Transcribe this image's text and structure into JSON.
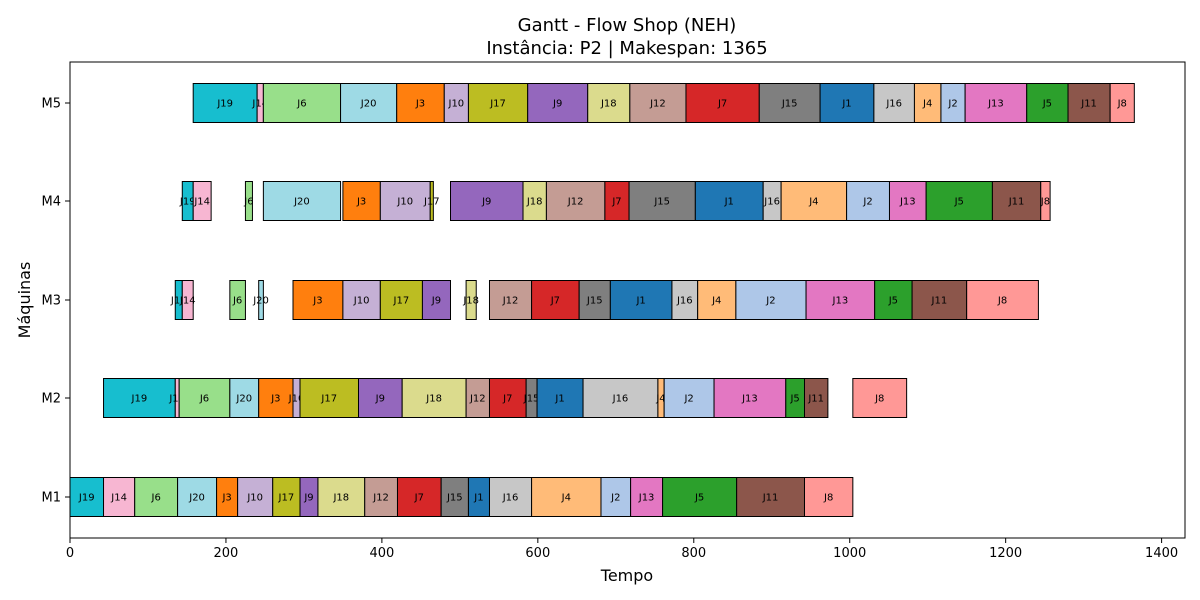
{
  "chart_data": {
    "type": "gantt",
    "title": "Gantt - Flow Shop (NEH)",
    "subtitle": "Instância: P2 | Makespan: 1365",
    "xlabel": "Tempo",
    "ylabel": "Máquinas",
    "xlim": [
      0,
      1430
    ],
    "x_ticks": [
      0,
      200,
      400,
      600,
      800,
      1000,
      1200,
      1400
    ],
    "machines": [
      "M1",
      "M2",
      "M3",
      "M4",
      "M5"
    ],
    "colors": {
      "J1": "#1f77b4",
      "J2": "#aec7e8",
      "J3": "#ff7f0e",
      "J4": "#ffbb78",
      "J5": "#2ca02c",
      "J6": "#98df8a",
      "J7": "#d62728",
      "J8": "#ff9896",
      "J9": "#9467bd",
      "J10": "#c5b0d5",
      "J11": "#8c564b",
      "J12": "#c49c94",
      "J13": "#e377c2",
      "J14": "#f7b6d2",
      "J15": "#7f7f7f",
      "J16": "#c7c7c7",
      "J17": "#bcbd22",
      "J18": "#dbdb8d",
      "J19": "#17becf",
      "J20": "#9edae5"
    },
    "schedule": {
      "M1": [
        {
          "job": "J19",
          "start": 0,
          "end": 43
        },
        {
          "job": "J14",
          "start": 43,
          "end": 83
        },
        {
          "job": "J6",
          "start": 83,
          "end": 138
        },
        {
          "job": "J20",
          "start": 138,
          "end": 188
        },
        {
          "job": "J3",
          "start": 188,
          "end": 215
        },
        {
          "job": "J10",
          "start": 215,
          "end": 260
        },
        {
          "job": "J17",
          "start": 260,
          "end": 295
        },
        {
          "job": "J9",
          "start": 295,
          "end": 318
        },
        {
          "job": "J18",
          "start": 318,
          "end": 378
        },
        {
          "job": "J12",
          "start": 378,
          "end": 420
        },
        {
          "job": "J7",
          "start": 420,
          "end": 476
        },
        {
          "job": "J15",
          "start": 476,
          "end": 511
        },
        {
          "job": "J1",
          "start": 511,
          "end": 538
        },
        {
          "job": "J16",
          "start": 538,
          "end": 592
        },
        {
          "job": "J4",
          "start": 592,
          "end": 681
        },
        {
          "job": "J2",
          "start": 681,
          "end": 719
        },
        {
          "job": "J13",
          "start": 719,
          "end": 760
        },
        {
          "job": "J5",
          "start": 760,
          "end": 855
        },
        {
          "job": "J11",
          "start": 855,
          "end": 942
        },
        {
          "job": "J8",
          "start": 942,
          "end": 1004
        }
      ],
      "M2": [
        {
          "job": "J19",
          "start": 43,
          "end": 135
        },
        {
          "job": "J14",
          "start": 135,
          "end": 140
        },
        {
          "job": "J6",
          "start": 140,
          "end": 205
        },
        {
          "job": "J20",
          "start": 205,
          "end": 242
        },
        {
          "job": "J3",
          "start": 242,
          "end": 286
        },
        {
          "job": "J10",
          "start": 286,
          "end": 295
        },
        {
          "job": "J17",
          "start": 295,
          "end": 370
        },
        {
          "job": "J9",
          "start": 370,
          "end": 426
        },
        {
          "job": "J18",
          "start": 426,
          "end": 508
        },
        {
          "job": "J12",
          "start": 508,
          "end": 538
        },
        {
          "job": "J7",
          "start": 538,
          "end": 585
        },
        {
          "job": "J15",
          "start": 585,
          "end": 599
        },
        {
          "job": "J1",
          "start": 599,
          "end": 658
        },
        {
          "job": "J16",
          "start": 658,
          "end": 754
        },
        {
          "job": "J4",
          "start": 754,
          "end": 762
        },
        {
          "job": "J2",
          "start": 762,
          "end": 826
        },
        {
          "job": "J13",
          "start": 826,
          "end": 918
        },
        {
          "job": "J5",
          "start": 918,
          "end": 942
        },
        {
          "job": "J11",
          "start": 942,
          "end": 972
        },
        {
          "job": "J8",
          "start": 1004,
          "end": 1073
        }
      ],
      "M3": [
        {
          "job": "J19",
          "start": 135,
          "end": 144
        },
        {
          "job": "J14",
          "start": 144,
          "end": 158
        },
        {
          "job": "J6",
          "start": 205,
          "end": 225
        },
        {
          "job": "J20",
          "start": 242,
          "end": 248
        },
        {
          "job": "J3",
          "start": 286,
          "end": 350
        },
        {
          "job": "J10",
          "start": 350,
          "end": 398
        },
        {
          "job": "J17",
          "start": 398,
          "end": 452
        },
        {
          "job": "J9",
          "start": 452,
          "end": 488
        },
        {
          "job": "J18",
          "start": 508,
          "end": 521
        },
        {
          "job": "J12",
          "start": 538,
          "end": 592
        },
        {
          "job": "J7",
          "start": 592,
          "end": 653
        },
        {
          "job": "J15",
          "start": 653,
          "end": 693
        },
        {
          "job": "J1",
          "start": 693,
          "end": 772
        },
        {
          "job": "J16",
          "start": 772,
          "end": 805
        },
        {
          "job": "J4",
          "start": 805,
          "end": 854
        },
        {
          "job": "J2",
          "start": 854,
          "end": 944
        },
        {
          "job": "J13",
          "start": 944,
          "end": 1032
        },
        {
          "job": "J5",
          "start": 1032,
          "end": 1080
        },
        {
          "job": "J11",
          "start": 1080,
          "end": 1150
        },
        {
          "job": "J8",
          "start": 1150,
          "end": 1242
        }
      ],
      "M4": [
        {
          "job": "J19",
          "start": 144,
          "end": 158
        },
        {
          "job": "J14",
          "start": 158,
          "end": 181
        },
        {
          "job": "J6",
          "start": 225,
          "end": 234
        },
        {
          "job": "J20",
          "start": 248,
          "end": 347
        },
        {
          "job": "J3",
          "start": 350,
          "end": 398
        },
        {
          "job": "J10",
          "start": 398,
          "end": 462
        },
        {
          "job": "J17",
          "start": 462,
          "end": 466
        },
        {
          "job": "J9",
          "start": 488,
          "end": 581
        },
        {
          "job": "J18",
          "start": 581,
          "end": 611
        },
        {
          "job": "J12",
          "start": 611,
          "end": 686
        },
        {
          "job": "J7",
          "start": 686,
          "end": 717
        },
        {
          "job": "J15",
          "start": 717,
          "end": 802
        },
        {
          "job": "J1",
          "start": 802,
          "end": 889
        },
        {
          "job": "J16",
          "start": 889,
          "end": 912
        },
        {
          "job": "J4",
          "start": 912,
          "end": 996
        },
        {
          "job": "J2",
          "start": 996,
          "end": 1051
        },
        {
          "job": "J13",
          "start": 1051,
          "end": 1098
        },
        {
          "job": "J5",
          "start": 1098,
          "end": 1183
        },
        {
          "job": "J11",
          "start": 1183,
          "end": 1245
        },
        {
          "job": "J8",
          "start": 1245,
          "end": 1257
        }
      ],
      "M5": [
        {
          "job": "J19",
          "start": 158,
          "end": 240
        },
        {
          "job": "J14",
          "start": 240,
          "end": 248
        },
        {
          "job": "J6",
          "start": 248,
          "end": 347
        },
        {
          "job": "J20",
          "start": 347,
          "end": 419
        },
        {
          "job": "J3",
          "start": 419,
          "end": 480
        },
        {
          "job": "J10",
          "start": 480,
          "end": 511
        },
        {
          "job": "J17",
          "start": 511,
          "end": 587
        },
        {
          "job": "J9",
          "start": 587,
          "end": 664
        },
        {
          "job": "J18",
          "start": 664,
          "end": 718
        },
        {
          "job": "J12",
          "start": 718,
          "end": 790
        },
        {
          "job": "J7",
          "start": 790,
          "end": 884
        },
        {
          "job": "J15",
          "start": 884,
          "end": 962
        },
        {
          "job": "J1",
          "start": 962,
          "end": 1031
        },
        {
          "job": "J16",
          "start": 1031,
          "end": 1083
        },
        {
          "job": "J4",
          "start": 1083,
          "end": 1117
        },
        {
          "job": "J2",
          "start": 1117,
          "end": 1148
        },
        {
          "job": "J13",
          "start": 1148,
          "end": 1227
        },
        {
          "job": "J5",
          "start": 1227,
          "end": 1280
        },
        {
          "job": "J11",
          "start": 1280,
          "end": 1334
        },
        {
          "job": "J8",
          "start": 1334,
          "end": 1365
        }
      ]
    },
    "grid": false,
    "legend": "none"
  }
}
